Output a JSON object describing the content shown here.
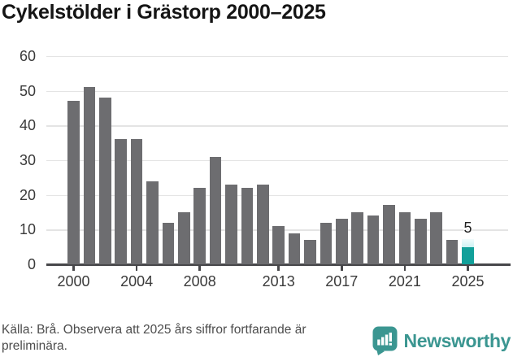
{
  "title": "Cykelstölder i Grästorp 2000–2025",
  "chart_data": {
    "type": "bar",
    "title": "Cykelstölder i Grästorp 2000–2025",
    "categories": [
      2000,
      2001,
      2002,
      2003,
      2004,
      2005,
      2006,
      2007,
      2008,
      2009,
      2010,
      2011,
      2012,
      2013,
      2014,
      2015,
      2016,
      2017,
      2018,
      2019,
      2020,
      2021,
      2022,
      2023,
      2024,
      2025
    ],
    "values": [
      47,
      51,
      48,
      36,
      36,
      24,
      12,
      15,
      22,
      31,
      23,
      22,
      23,
      11,
      9,
      7,
      12,
      13,
      15,
      14,
      17,
      15,
      13,
      15,
      7,
      5
    ],
    "xlabel": "",
    "ylabel": "",
    "ylim": [
      0,
      60
    ],
    "yticks": [
      0,
      10,
      20,
      30,
      40,
      50,
      60
    ],
    "xticks": [
      2000,
      2004,
      2008,
      2013,
      2017,
      2021,
      2025
    ],
    "grid": true,
    "legend": "none",
    "highlight": {
      "year": 2025,
      "value": 5,
      "value_label": "5",
      "projection_top": 7.3,
      "status": "preliminär"
    }
  },
  "colors": {
    "bar": "#6d6d70",
    "highlight_bar": "#12a09a",
    "projection_cap_light": "#cdf1f3",
    "gridline": "#e4e4e4",
    "axis": "#47474a",
    "axis_text": "#3a3a3a",
    "title_text": "#151515",
    "footer_text": "#4c4c4c",
    "brand_teal": "#3b9691"
  },
  "footer": {
    "note_lines": [
      "Källa: Brå. Observera att 2025 års siffror fortfarande är",
      "preliminära."
    ],
    "brand": "Newsworthy",
    "logo_icon": "speech-bubble-bar-chart-exclamation"
  }
}
